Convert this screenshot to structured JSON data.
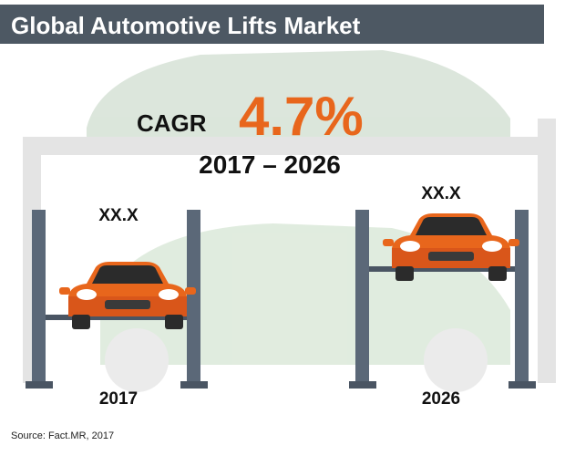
{
  "header": {
    "title": "Global Automotive Lifts Market"
  },
  "cagr": {
    "label": "CAGR",
    "value": "4.7%",
    "period": "2017 – 2026"
  },
  "lifts": [
    {
      "value": "XX.X",
      "year": "2017"
    },
    {
      "value": "XX.X",
      "year": "2026"
    }
  ],
  "source": "Source: Fact.MR, 2017"
}
